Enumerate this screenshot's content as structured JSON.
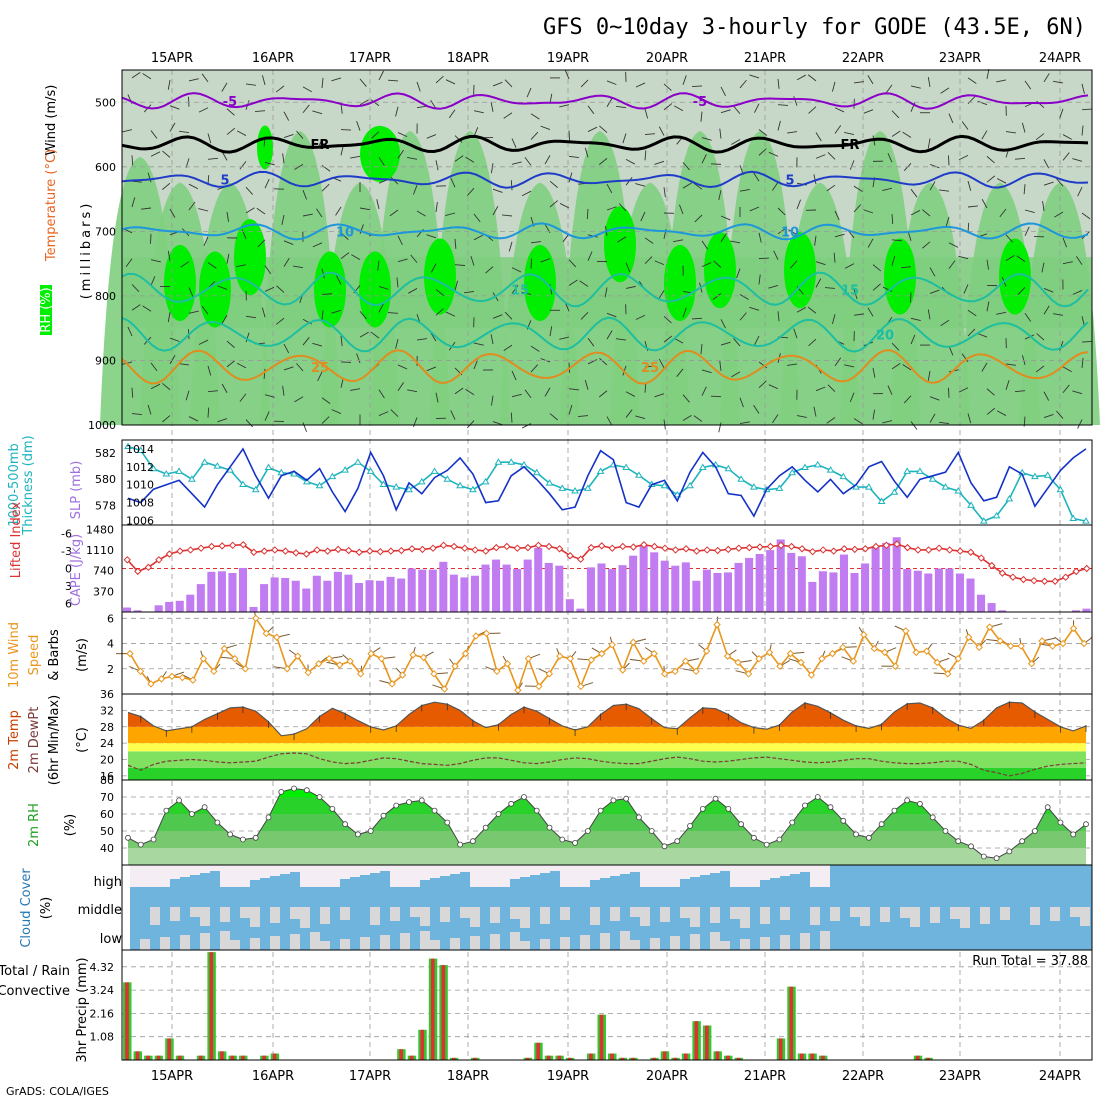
{
  "title": "GFS 0~10day 3-hourly for GODE (43.5E, 6N)",
  "footer": "GrADS: COLA/IGES",
  "dates": [
    "15APR",
    "16APR",
    "17APR",
    "18APR",
    "19APR",
    "20APR",
    "21APR",
    "22APR",
    "23APR",
    "24APR"
  ],
  "panel_labels": {
    "wind_temp": [
      "RH (%)",
      "Temperature (°C)",
      "Wind (m/s)"
    ],
    "wind_temp_unit": "(millibars)",
    "slp": [
      "1000-500mb",
      "Thickness (dm)",
      "SLP (mb)"
    ],
    "li": [
      "Lifted Index",
      "CAPE (J/kg)"
    ],
    "wind10": [
      "10m Wind",
      "Speed",
      "& Barbs",
      "(m/s)"
    ],
    "temp2m": [
      "2m Temp",
      "2m DewPt",
      "(6hr Min/Max)",
      "(°C)"
    ],
    "rh2m": [
      "2m RH",
      "(%)"
    ],
    "cloud": [
      "Cloud Cover",
      "(%)"
    ],
    "cloud_levels": [
      "high",
      "middle",
      "low"
    ],
    "precip": [
      "Total / Rain",
      "Convective",
      "3hr Precip (mm)"
    ],
    "run_total": "Run Total = 37.88"
  },
  "colors": {
    "rh_dark": "#00ee00",
    "rh_mid": "#7fcf7f",
    "rh_light": "#c8d8c8",
    "temp_purple": "#8a00c8",
    "temp_blue": "#1e3cc8",
    "temp_cyan": "#1e96dc",
    "temp_teal": "#1ebea0",
    "temp_orange": "#e08c1e",
    "slp": "#1432c8",
    "thick": "#1eb4be",
    "cape": "#c07cf0",
    "li": "#dc3232",
    "wind": "#e8961e",
    "tmax": "#e65a00",
    "tmid": "#ffa500",
    "tlow": "#ffff50",
    "dew": "#50c850",
    "rh2": "#28d228",
    "cloud": "#6eb4dc",
    "precip_total": "#32c832",
    "precip_conv": "#dc3232"
  },
  "chart_data": [
    {
      "type": "heatmap",
      "name": "vertical cross section",
      "y_ticks": [
        500,
        600,
        700,
        800,
        900,
        1000
      ],
      "ylim": [
        1000,
        450
      ],
      "isotherm_labels": [
        "-5",
        "FR",
        "5",
        "10",
        "15",
        "20",
        "25",
        "-5",
        "FR",
        "5",
        "10",
        "15",
        "20",
        "25"
      ],
      "isotherms": [
        {
          "label": "-5",
          "p": 498
        },
        {
          "label": "FR",
          "p": 565
        },
        {
          "label": "5",
          "p": 620
        },
        {
          "label": "10",
          "p": 700
        },
        {
          "label": "15",
          "p": 790
        },
        {
          "label": "20",
          "p": 860
        },
        {
          "label": "25",
          "p": 910
        }
      ]
    },
    {
      "type": "line",
      "name": "thickness / slp",
      "y_ticks_left": [
        578,
        580,
        582
      ],
      "y_ticks_right": [
        1006,
        1008,
        1010,
        1012,
        1014
      ],
      "ylim_left": [
        576.5,
        583
      ],
      "ylim_right": [
        1005.5,
        1015
      ],
      "series": [
        {
          "name": "Thickness",
          "values": [
            582.5,
            582.2,
            580.8,
            580.4,
            580.6,
            580.0,
            581.3,
            581.0,
            580.7,
            579.6,
            579.2,
            580.9,
            580.5,
            580.4,
            579.8,
            579.5,
            580.2,
            580.7,
            581.3,
            580.6,
            579.6,
            579.4,
            579.2,
            579.8,
            580.6,
            580.0,
            579.5,
            579.2,
            579.8,
            581.3,
            581.3,
            581.1,
            580.5,
            579.7,
            579.3,
            579.1,
            579.3,
            580.6,
            581.1,
            580.9,
            580.3,
            579.6,
            579.5,
            578.8,
            579.5,
            580.9,
            581.1,
            580.8,
            580.0,
            579.4,
            579.2,
            579.3,
            580.5,
            580.9,
            581.1,
            580.7,
            580.2,
            579.4,
            579.4,
            578.3,
            579.0,
            580.6,
            580.6,
            580.0,
            579.4,
            579.1,
            578.0,
            576.8,
            577.2,
            578.5,
            580.5,
            580.2,
            580.3,
            579.2,
            577.0,
            576.8
          ]
        },
        {
          "name": "SLP",
          "values": [
            1008.5,
            1008.0,
            1009.5,
            1010.0,
            1010.5,
            1009.0,
            1007.5,
            1010.0,
            1012.0,
            1014.0,
            1011.0,
            1008.5,
            1011.0,
            1011.5,
            1010.5,
            1011.8,
            1009.2,
            1007.0,
            1009.6,
            1013.6,
            1011.0,
            1007.2,
            1010.2,
            1009.0,
            1010.8,
            1011.6,
            1013.0,
            1011.2,
            1008.0,
            1008.2,
            1011.0,
            1012.0,
            1010.6,
            1009.0,
            1007.2,
            1007.5,
            1011.0,
            1013.8,
            1012.8,
            1008.0,
            1007.5,
            1010.0,
            1010.5,
            1008.2,
            1011.4,
            1013.6,
            1012.0,
            1009.0,
            1008.8,
            1006.5,
            1009.5,
            1011.0,
            1012.0,
            1010.5,
            1009.2,
            1010.6,
            1009.0,
            1010.0,
            1012.0,
            1012.6,
            1010.4,
            1008.6,
            1010.6,
            1011.0,
            1011.4,
            1013.6,
            1010.2,
            1008.2,
            1008.6,
            1012.0,
            1011.2,
            1007.6,
            1009.6,
            1011.6,
            1013.0,
            1014.0
          ]
        }
      ]
    },
    {
      "type": "bar",
      "name": "cape / lifted index",
      "cape_ticks": [
        370,
        740,
        1110,
        1480
      ],
      "li_ticks": [
        -6,
        -3,
        0,
        3,
        6
      ],
      "cape": [
        80,
        30,
        0,
        120,
        180,
        200,
        310,
        500,
        720,
        730,
        700,
        790,
        90,
        500,
        620,
        610,
        560,
        420,
        650,
        560,
        720,
        670,
        520,
        570,
        560,
        630,
        600,
        780,
        760,
        760,
        900,
        670,
        620,
        650,
        850,
        940,
        850,
        770,
        940,
        1150,
        880,
        830,
        230,
        60,
        800,
        870,
        770,
        840,
        1010,
        1190,
        1070,
        920,
        830,
        890,
        560,
        760,
        700,
        710,
        880,
        970,
        1040,
        1110,
        1300,
        1060,
        1000,
        540,
        730,
        710,
        1030,
        700,
        870,
        1180,
        1240,
        1340,
        770,
        740,
        690,
        780,
        780,
        690,
        600,
        310,
        160,
        30,
        0,
        0,
        0,
        0,
        0,
        0,
        30,
        60
      ],
      "li": [
        -1.5,
        0.5,
        -0.2,
        -1.5,
        -2.5,
        -3.0,
        -3.2,
        -3.5,
        -3.8,
        -3.9,
        -4.0,
        -4.1,
        -2.8,
        -3.0,
        -3.2,
        -3.0,
        -2.7,
        -2.5,
        -3.2,
        -3.0,
        -3.3,
        -3.1,
        -2.8,
        -3.0,
        -2.9,
        -3.0,
        -3.1,
        -3.4,
        -3.3,
        -3.5,
        -4.0,
        -3.8,
        -3.5,
        -3.2,
        -3.0,
        -3.6,
        -3.8,
        -3.5,
        -3.6,
        -4.0,
        -3.8,
        -3.4,
        -2.2,
        -1.6,
        -3.6,
        -3.9,
        -3.5,
        -3.8,
        -3.7,
        -4.1,
        -3.8,
        -3.5,
        -3.2,
        -3.4,
        -3.0,
        -3.2,
        -3.1,
        -3.3,
        -3.5,
        -3.6,
        -3.7,
        -3.8,
        -4.0,
        -3.8,
        -3.4,
        -2.9,
        -3.2,
        -3.0,
        -3.4,
        -3.3,
        -3.4,
        -3.8,
        -4.0,
        -4.2,
        -3.6,
        -3.2,
        -3.2,
        -3.5,
        -3.2,
        -3.0,
        -2.8,
        -1.8,
        -0.5,
        0.8,
        1.5,
        1.9,
        2.1,
        2.2,
        2.2,
        1.5,
        0.5,
        0.0
      ]
    },
    {
      "type": "line",
      "name": "10m wind speed",
      "y_ticks": [
        2,
        4,
        6
      ],
      "ylim": [
        0,
        6.5
      ],
      "values": [
        3.2,
        1.8,
        0.8,
        1.2,
        1.4,
        1.3,
        1.1,
        2.8,
        1.8,
        3.6,
        2.8,
        2.0,
        6.0,
        4.8,
        4.5,
        2.0,
        3.0,
        1.7,
        2.4,
        2.8,
        2.3,
        2.6,
        1.6,
        3.2,
        2.8,
        0.8,
        1.5,
        3.1,
        2.9,
        1.6,
        0.4,
        2.2,
        3.2,
        4.6,
        4.8,
        1.8,
        2.4,
        0.3,
        2.8,
        0.6,
        1.6,
        3.0,
        2.8,
        0.6,
        2.7,
        3.2,
        3.9,
        1.9,
        4.1,
        2.6,
        3.2,
        1.6,
        1.8,
        2.6,
        1.8,
        3.4,
        5.5,
        3.0,
        2.5,
        1.6,
        2.8,
        3.3,
        2.2,
        3.2,
        2.5,
        1.5,
        2.8,
        3.2,
        3.7,
        2.6,
        4.7,
        3.6,
        3.3,
        2.2,
        5.0,
        3.3,
        3.4,
        2.5,
        1.6,
        2.8,
        4.5,
        3.7,
        5.3,
        4.2,
        3.8,
        3.8,
        2.4,
        4.2,
        3.8,
        4.0,
        5.2,
        4.0
      ],
      "start": 2,
      "step": 2
    },
    {
      "type": "area",
      "name": "2m temperature / dewpoint",
      "y_ticks": [
        16,
        20,
        24,
        28,
        32,
        36
      ],
      "ylim": [
        15,
        36
      ],
      "temp": [
        31.5,
        30.5,
        28.2,
        27.0,
        27.5,
        28.0,
        29.8,
        31.2,
        32.6,
        32.8,
        31.8,
        29.2,
        25.8,
        26.2,
        27.5,
        30.5,
        32.5,
        31.2,
        29.5,
        28.0,
        27.2,
        28.2,
        31.0,
        33.2,
        34.0,
        33.5,
        32.0,
        29.5,
        27.8,
        28.5,
        31.0,
        32.8,
        31.8,
        30.0,
        28.2,
        27.2,
        28.0,
        31.0,
        33.2,
        33.5,
        32.4,
        30.0,
        27.8,
        27.5,
        30.2,
        32.6,
        32.4,
        31.0,
        29.0,
        27.8,
        27.4,
        28.4,
        31.6,
        33.8,
        33.0,
        31.4,
        29.6,
        28.2,
        27.6,
        28.6,
        31.6,
        33.6,
        33.8,
        32.6,
        30.2,
        28.4,
        27.6,
        29.6,
        32.6,
        34.0,
        33.8,
        31.6,
        29.8,
        28.0,
        27.0,
        28.2
      ],
      "dew": [
        18.6,
        17.4,
        18.8,
        19.6,
        19.8,
        20.0,
        19.8,
        19.4,
        19.2,
        19.4,
        19.6,
        20.6,
        21.4,
        21.6,
        21.4,
        20.2,
        19.4,
        19.0,
        19.2,
        19.8,
        20.4,
        20.2,
        19.6,
        19.0,
        18.8,
        18.6,
        19.0,
        19.8,
        20.4,
        20.4,
        19.8,
        19.2,
        19.0,
        19.4,
        20.0,
        20.4,
        20.2,
        19.6,
        19.2,
        19.0,
        19.0,
        19.6,
        20.2,
        20.6,
        20.2,
        19.6,
        19.4,
        19.6,
        20.0,
        20.4,
        20.6,
        20.2,
        19.8,
        19.4,
        19.2,
        19.4,
        19.8,
        20.2,
        20.2,
        19.6,
        19.2,
        19.0,
        19.0,
        19.2,
        19.6,
        19.6,
        18.8,
        17.4,
        16.8,
        16.0,
        16.6,
        17.6,
        18.4,
        18.8,
        19.0,
        19.2
      ]
    },
    {
      "type": "area",
      "name": "2m relative humidity",
      "y_ticks": [
        40,
        50,
        60,
        70,
        80
      ],
      "ylim": [
        30,
        80
      ],
      "values": [
        46,
        42,
        45,
        62,
        68,
        60,
        64,
        55,
        48,
        45,
        46,
        58,
        73,
        75,
        74,
        70,
        63,
        54,
        48,
        50,
        59,
        65,
        67,
        68,
        62,
        55,
        42,
        44,
        52,
        60,
        66,
        70,
        62,
        52,
        45,
        43,
        50,
        62,
        68,
        69,
        58,
        50,
        41,
        44,
        53,
        63,
        69,
        63,
        54,
        46,
        42,
        45,
        55,
        65,
        70,
        64,
        56,
        48,
        46,
        54,
        62,
        68,
        66,
        58,
        50,
        44,
        41,
        35,
        34,
        38,
        44,
        50,
        64,
        55,
        48,
        54
      ]
    },
    {
      "type": "heatmap",
      "name": "cloud cover",
      "levels": [
        "high",
        "middle",
        "low"
      ]
    },
    {
      "type": "bar",
      "name": "3hr precipitation",
      "y_ticks": [
        1.08,
        2.16,
        3.24,
        4.32
      ],
      "ylim": [
        0,
        5.1
      ],
      "run_total": "37.88",
      "values": [
        3.6,
        0.4,
        0.2,
        0.2,
        1.0,
        0.2,
        0,
        0.2,
        5.0,
        0.4,
        0.2,
        0.2,
        0,
        0.2,
        0.3,
        0,
        0,
        0,
        0,
        0,
        0,
        0,
        0,
        0,
        0,
        0,
        0.5,
        0.2,
        1.4,
        4.7,
        4.4,
        0.1,
        0,
        0.1,
        0,
        0,
        0,
        0,
        0.1,
        0.8,
        0.2,
        0.2,
        0.1,
        0,
        0.3,
        2.1,
        0.3,
        0.1,
        0.1,
        0,
        0.1,
        0.4,
        0.1,
        0.3,
        1.8,
        1.6,
        0.4,
        0.2,
        0.1,
        0,
        0,
        0,
        1.0,
        3.4,
        0.3,
        0.3,
        0.2,
        0,
        0,
        0,
        0,
        0,
        0,
        0,
        0,
        0.2,
        0.1,
        0,
        0,
        0,
        0,
        0,
        0,
        0,
        0,
        0,
        0,
        0,
        0,
        0,
        0,
        0
      ]
    }
  ]
}
